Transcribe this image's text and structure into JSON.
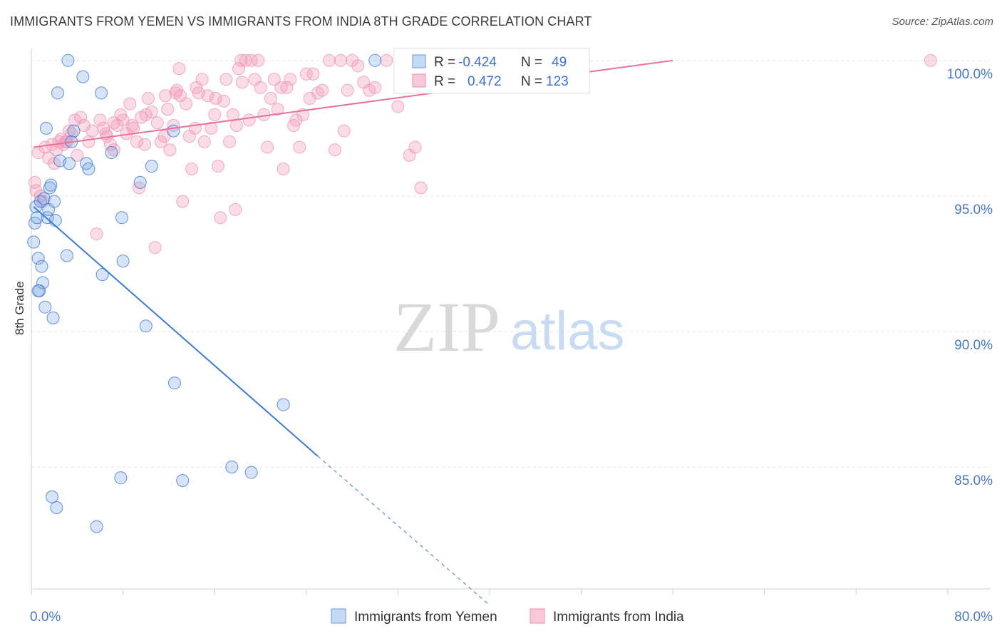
{
  "title": "IMMIGRANTS FROM YEMEN VS IMMIGRANTS FROM INDIA 8TH GRADE CORRELATION CHART",
  "source": "Source: ZipAtlas.com",
  "watermark": {
    "zip": "ZIP",
    "atlas": "atlas"
  },
  "chart_data": {
    "type": "scatter",
    "title": "IMMIGRANTS FROM YEMEN VS IMMIGRANTS FROM INDIA 8TH GRADE CORRELATION CHART",
    "xlabel": "",
    "ylabel": "8th Grade",
    "xlim": [
      0,
      80
    ],
    "ylim": [
      80.5,
      100.6
    ],
    "x_tick_labels": [
      "0.0%",
      "80.0%"
    ],
    "y_ticks": [
      85,
      90,
      95,
      100
    ],
    "y_tick_labels": [
      "85.0%",
      "90.0%",
      "95.0%",
      "100.0%"
    ],
    "grid": true,
    "legend_position": "bottom",
    "stats_box_position": "top-center",
    "colors": {
      "yemen": "#7aa7e6",
      "yemen_line": "#3a7bd5",
      "india": "#f19ab8",
      "india_line": "#e8719a"
    },
    "series": [
      {
        "name": "Immigrants from Yemen",
        "R_label": "R =",
        "R": "-0.424",
        "N_label": "N =",
        "N": "49",
        "points": [
          [
            0.2,
            93.3
          ],
          [
            0.3,
            94.0
          ],
          [
            0.4,
            94.6
          ],
          [
            0.5,
            94.2
          ],
          [
            0.6,
            92.7
          ],
          [
            0.7,
            91.5
          ],
          [
            0.8,
            94.8
          ],
          [
            0.9,
            92.4
          ],
          [
            1.0,
            91.8
          ],
          [
            1.1,
            94.9
          ],
          [
            1.2,
            90.9
          ],
          [
            1.3,
            97.5
          ],
          [
            1.4,
            94.2
          ],
          [
            1.5,
            94.5
          ],
          [
            1.6,
            95.3
          ],
          [
            1.7,
            95.4
          ],
          [
            1.8,
            83.9
          ],
          [
            1.9,
            90.5
          ],
          [
            2.0,
            94.8
          ],
          [
            2.1,
            94.1
          ],
          [
            2.2,
            83.5
          ],
          [
            2.3,
            98.8
          ],
          [
            2.5,
            96.3
          ],
          [
            3.1,
            92.8
          ],
          [
            3.2,
            100.0
          ],
          [
            3.3,
            96.2
          ],
          [
            3.5,
            97.0
          ],
          [
            3.7,
            97.4
          ],
          [
            4.5,
            99.4
          ],
          [
            4.8,
            96.2
          ],
          [
            5.0,
            96.0
          ],
          [
            5.7,
            82.8
          ],
          [
            6.1,
            98.8
          ],
          [
            6.2,
            92.1
          ],
          [
            7.0,
            96.6
          ],
          [
            7.8,
            84.6
          ],
          [
            7.9,
            94.2
          ],
          [
            8.0,
            92.6
          ],
          [
            9.5,
            95.5
          ],
          [
            10.0,
            90.2
          ],
          [
            10.5,
            96.1
          ],
          [
            12.4,
            97.4
          ],
          [
            12.5,
            88.1
          ],
          [
            13.2,
            84.5
          ],
          [
            17.5,
            85.0
          ],
          [
            19.2,
            84.8
          ],
          [
            22.0,
            87.3
          ],
          [
            30.0,
            100.0
          ],
          [
            0.6,
            91.5
          ]
        ],
        "trend": {
          "x0": 0.2,
          "y0": 94.6,
          "x1": 25.0,
          "y1": 85.4,
          "dash_x1": 40.0,
          "dash_y1": 79.9
        }
      },
      {
        "name": "Immigrants from India",
        "R_label": "R =",
        "R": "0.472",
        "N_label": "N =",
        "N": "123",
        "points": [
          [
            0.3,
            95.5
          ],
          [
            0.4,
            95.2
          ],
          [
            0.6,
            96.6
          ],
          [
            0.8,
            95.0
          ],
          [
            1.0,
            94.8
          ],
          [
            1.2,
            96.8
          ],
          [
            1.5,
            96.4
          ],
          [
            1.8,
            96.9
          ],
          [
            2.0,
            96.2
          ],
          [
            2.2,
            96.7
          ],
          [
            2.4,
            97.0
          ],
          [
            2.6,
            97.1
          ],
          [
            2.8,
            96.9
          ],
          [
            3.0,
            97.0
          ],
          [
            3.1,
            97.0
          ],
          [
            3.3,
            97.4
          ],
          [
            3.5,
            97.3
          ],
          [
            3.8,
            97.8
          ],
          [
            4.0,
            96.5
          ],
          [
            4.3,
            97.9
          ],
          [
            4.6,
            97.6
          ],
          [
            5.0,
            97.0
          ],
          [
            5.3,
            97.4
          ],
          [
            5.7,
            93.6
          ],
          [
            6.0,
            97.8
          ],
          [
            6.3,
            97.5
          ],
          [
            6.6,
            97.2
          ],
          [
            6.9,
            96.9
          ],
          [
            7.2,
            96.7
          ],
          [
            7.5,
            97.6
          ],
          [
            7.8,
            98.0
          ],
          [
            8.0,
            97.8
          ],
          [
            8.3,
            97.3
          ],
          [
            8.6,
            98.4
          ],
          [
            8.9,
            97.5
          ],
          [
            9.2,
            97.0
          ],
          [
            9.4,
            95.3
          ],
          [
            9.6,
            97.9
          ],
          [
            9.9,
            96.9
          ],
          [
            10.2,
            98.6
          ],
          [
            10.5,
            98.1
          ],
          [
            10.8,
            93.1
          ],
          [
            11.0,
            97.7
          ],
          [
            11.3,
            97.0
          ],
          [
            11.6,
            97.2
          ],
          [
            11.9,
            98.2
          ],
          [
            12.1,
            96.7
          ],
          [
            12.4,
            97.6
          ],
          [
            12.7,
            98.9
          ],
          [
            12.9,
            99.7
          ],
          [
            13.0,
            98.7
          ],
          [
            13.2,
            94.8
          ],
          [
            13.5,
            98.4
          ],
          [
            13.8,
            97.2
          ],
          [
            14.0,
            96.0
          ],
          [
            14.3,
            97.5
          ],
          [
            14.6,
            98.8
          ],
          [
            14.9,
            99.3
          ],
          [
            15.1,
            97.0
          ],
          [
            15.4,
            98.7
          ],
          [
            15.7,
            97.5
          ],
          [
            16.0,
            98.0
          ],
          [
            16.3,
            96.1
          ],
          [
            16.5,
            94.2
          ],
          [
            16.8,
            98.5
          ],
          [
            17.0,
            99.3
          ],
          [
            17.3,
            97.0
          ],
          [
            17.6,
            98.0
          ],
          [
            17.8,
            94.5
          ],
          [
            18.1,
            99.7
          ],
          [
            18.4,
            99.2
          ],
          [
            18.7,
            100.0
          ],
          [
            19.0,
            97.8
          ],
          [
            19.2,
            100.0
          ],
          [
            19.5,
            99.3
          ],
          [
            19.8,
            100.0
          ],
          [
            20.0,
            99.0
          ],
          [
            20.3,
            98.0
          ],
          [
            20.6,
            96.8
          ],
          [
            20.9,
            98.6
          ],
          [
            21.2,
            99.3
          ],
          [
            21.5,
            98.2
          ],
          [
            21.8,
            99.0
          ],
          [
            22.0,
            96.0
          ],
          [
            22.3,
            99.0
          ],
          [
            22.6,
            99.3
          ],
          [
            22.9,
            97.6
          ],
          [
            23.1,
            97.8
          ],
          [
            23.4,
            96.8
          ],
          [
            23.7,
            98.0
          ],
          [
            24.0,
            99.5
          ],
          [
            24.3,
            98.6
          ],
          [
            24.6,
            99.5
          ],
          [
            25.0,
            98.8
          ],
          [
            25.4,
            98.9
          ],
          [
            26.0,
            100.0
          ],
          [
            26.5,
            96.7
          ],
          [
            27.0,
            100.0
          ],
          [
            27.3,
            97.4
          ],
          [
            27.6,
            98.9
          ],
          [
            28.0,
            100.0
          ],
          [
            28.5,
            99.8
          ],
          [
            29.0,
            99.2
          ],
          [
            29.5,
            98.9
          ],
          [
            30.0,
            99.0
          ],
          [
            31.0,
            100.0
          ],
          [
            32.0,
            98.3
          ],
          [
            33.0,
            96.5
          ],
          [
            33.5,
            96.8
          ],
          [
            34.0,
            95.3
          ],
          [
            35.5,
            100.0
          ],
          [
            36.5,
            100.0
          ],
          [
            78.5,
            100.0
          ],
          [
            6.5,
            97.3
          ],
          [
            8.8,
            97.6
          ],
          [
            10.0,
            98.0
          ],
          [
            14.4,
            99.0
          ],
          [
            16.1,
            98.6
          ],
          [
            11.7,
            98.7
          ],
          [
            12.6,
            98.8
          ],
          [
            7.2,
            97.7
          ],
          [
            17.9,
            97.6
          ],
          [
            18.3,
            100.0
          ]
        ],
        "trend": {
          "x0": 0.2,
          "y0": 96.8,
          "x1": 56.0,
          "y1": 100.0
        }
      }
    ]
  }
}
